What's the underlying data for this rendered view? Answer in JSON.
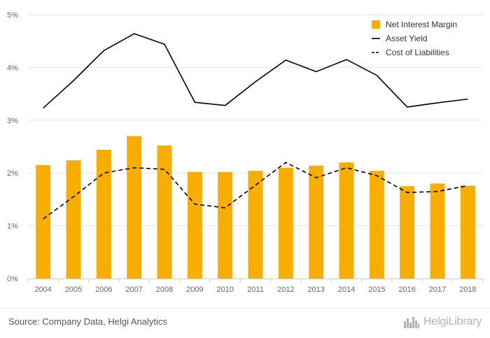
{
  "chart_data": {
    "type": "bar",
    "categories": [
      "2004",
      "2005",
      "2006",
      "2007",
      "2008",
      "2009",
      "2010",
      "2011",
      "2012",
      "2013",
      "2014",
      "2015",
      "2016",
      "2017",
      "2018"
    ],
    "series": [
      {
        "name": "Net Interest Margin",
        "type": "bar",
        "color": "#f7ae00",
        "values": [
          2.15,
          2.24,
          2.44,
          2.7,
          2.52,
          2.02,
          2.02,
          2.04,
          2.1,
          2.14,
          2.2,
          2.04,
          1.75,
          1.8,
          1.76
        ]
      },
      {
        "name": "Asset Yield",
        "type": "line",
        "color": "#000000",
        "dash": "solid",
        "values": [
          3.23,
          3.75,
          4.32,
          4.64,
          4.44,
          3.34,
          3.28,
          3.73,
          4.14,
          3.92,
          4.15,
          3.85,
          3.25,
          3.33,
          3.4
        ]
      },
      {
        "name": "Cost of Liabilities",
        "type": "line",
        "color": "#000000",
        "dash": "dashed",
        "values": [
          1.13,
          1.55,
          2.0,
          2.1,
          2.07,
          1.41,
          1.34,
          1.77,
          2.2,
          1.91,
          2.1,
          1.95,
          1.63,
          1.65,
          1.76
        ]
      }
    ],
    "y_ticks": [
      "0%",
      "1%",
      "2%",
      "3%",
      "4%",
      "5%"
    ],
    "ylim": [
      0,
      5
    ],
    "grid": true,
    "legend_position": "top-right"
  },
  "source": "Source: Company Data, Helgi Analytics",
  "logo": {
    "text": "HelgiLibrary",
    "icon": "city-skyline-icon"
  }
}
